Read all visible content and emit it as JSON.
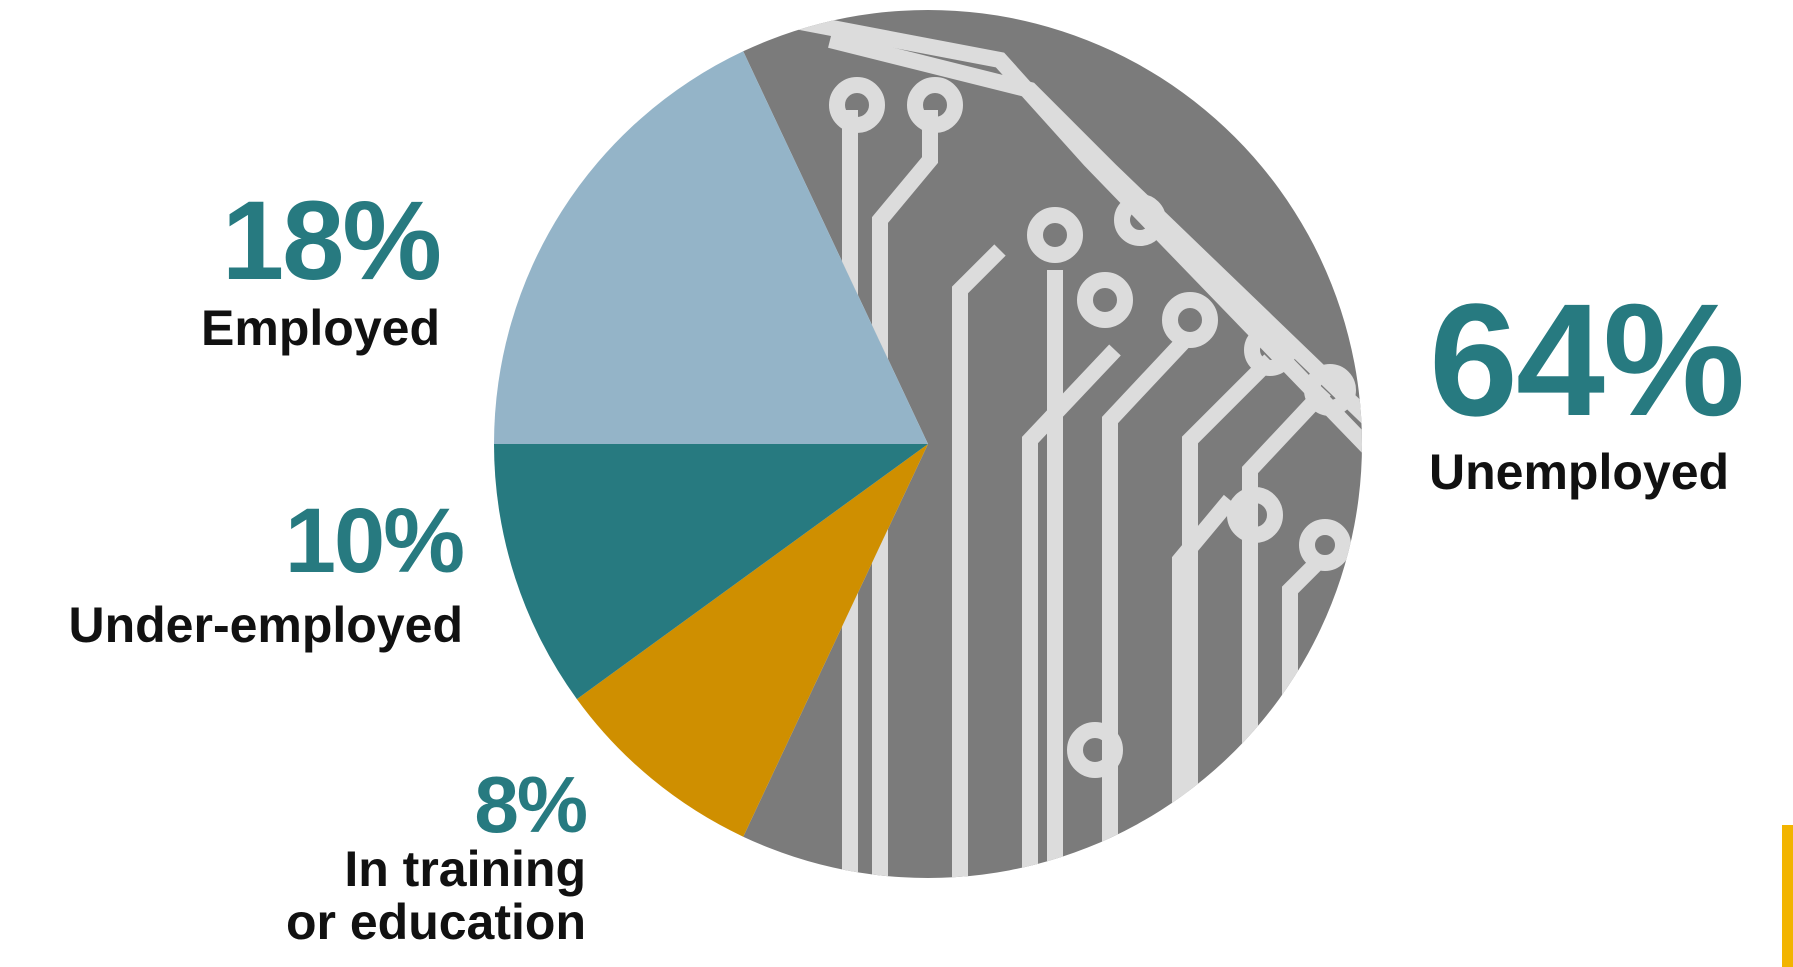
{
  "chart_data": {
    "type": "pie",
    "categories": [
      "Unemployed",
      "In training\nor education",
      "Under-employed",
      "Employed"
    ],
    "values": [
      64,
      8,
      10,
      18
    ],
    "value_labels": [
      "64%",
      "8%",
      "10%",
      "18%"
    ],
    "colors": [
      "#7b7b7b",
      "#cf8f00",
      "#277a80",
      "#94b4c8"
    ]
  }
}
